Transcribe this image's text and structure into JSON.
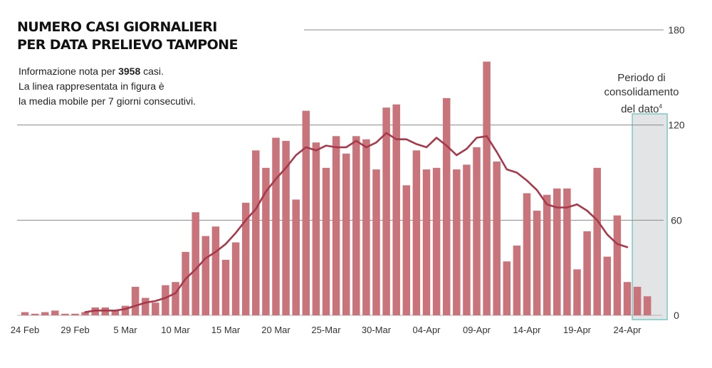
{
  "title_lines": [
    "NUMERO CASI GIORNALIERI",
    "PER DATA PRELIEVO TAMPONE"
  ],
  "subtitle": {
    "line1_prefix": "Informazione nota per ",
    "line1_bold": "3958",
    "line1_suffix": " casi.",
    "line2": "La linea rappresentata in figura è",
    "line3": "la media mobile per 7 giorni consecutivi."
  },
  "note": {
    "line1": "Periodo di",
    "line2": "consolidamento",
    "line3": "del dato",
    "footnote": "4"
  },
  "colors": {
    "bar": "#c9737b",
    "line": "#a63a4b",
    "grid": "#8a8a8a",
    "highlight_fill": "#e3e4e6",
    "highlight_border": "#7cc8c4"
  },
  "chart_data": {
    "type": "bar",
    "title": "NUMERO CASI GIORNALIERI PER DATA PRELIEVO TAMPONE",
    "xlabel": "",
    "ylabel": "",
    "ylim": [
      0,
      180
    ],
    "yticks": [
      0,
      60,
      120,
      180
    ],
    "grid": true,
    "x_tick_labels": [
      "24 Feb",
      "29 Feb",
      "5 Mar",
      "10 Mar",
      "15 Mar",
      "20 Mar",
      "25-Mar",
      "30-Mar",
      "04-Apr",
      "09-Apr",
      "14-Apr",
      "19-Apr",
      "24-Apr"
    ],
    "x_tick_every": 5,
    "consolidation_period_start_index": 61,
    "series": [
      {
        "name": "Casi giornalieri",
        "type": "bar",
        "values": [
          2,
          1,
          2,
          3,
          1,
          1,
          2,
          5,
          5,
          3,
          6,
          18,
          11,
          8,
          19,
          21,
          40,
          65,
          50,
          56,
          35,
          46,
          71,
          104,
          93,
          112,
          110,
          73,
          129,
          109,
          93,
          113,
          102,
          113,
          111,
          92,
          131,
          133,
          82,
          104,
          92,
          93,
          137,
          92,
          95,
          106,
          160,
          97,
          34,
          44,
          77,
          66,
          76,
          80,
          80,
          29,
          53,
          93,
          37,
          63,
          21,
          18,
          12
        ]
      },
      {
        "name": "Media mobile 7 giorni",
        "type": "line",
        "start_index": 6,
        "values": [
          2,
          3,
          3,
          3,
          4,
          6,
          8,
          9,
          11,
          14,
          23,
          29,
          36,
          40,
          45,
          52,
          60,
          67,
          78,
          86,
          93,
          101,
          106,
          104,
          107,
          106,
          106,
          110,
          106,
          109,
          115,
          111,
          111,
          108,
          106,
          112,
          107,
          101,
          105,
          112,
          113,
          103,
          92,
          90,
          85,
          79,
          70,
          68,
          68,
          70,
          66,
          60,
          51,
          45,
          43
        ]
      }
    ]
  }
}
